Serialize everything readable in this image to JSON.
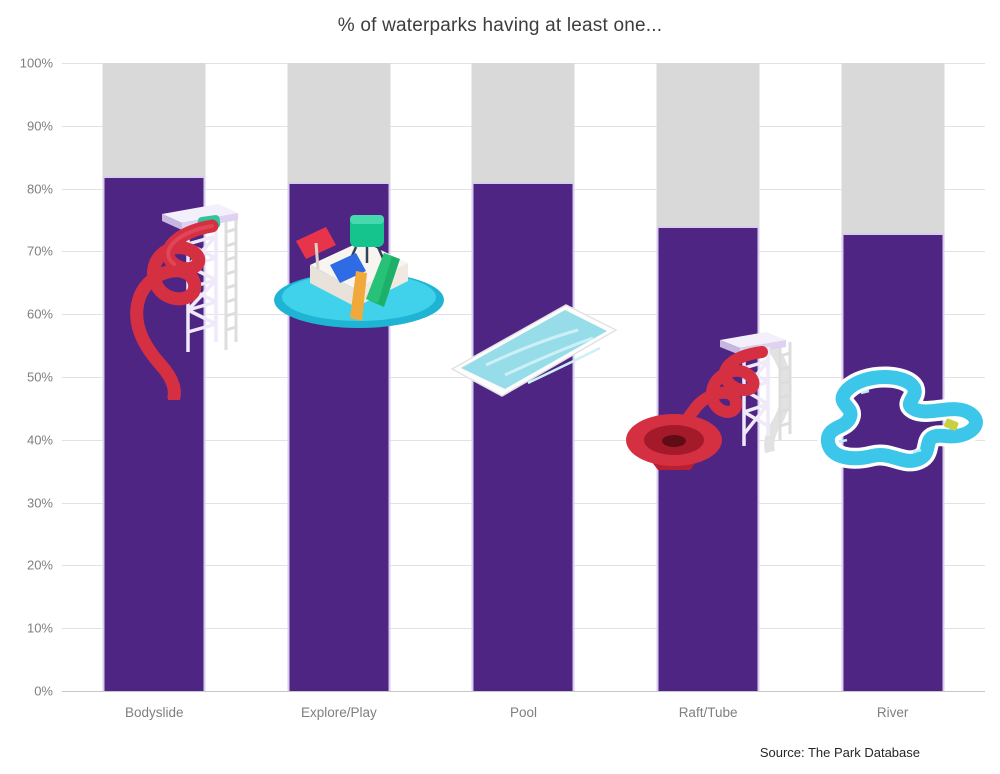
{
  "header": {
    "title": "% of waterparks having at least one..."
  },
  "footer": {
    "source": "Source: The Park Database"
  },
  "chart_data": {
    "type": "bar",
    "title": "% of waterparks having at least one...",
    "categories": [
      "Bodyslide",
      "Explore/Play",
      "Pool",
      "Raft/Tube",
      "River"
    ],
    "values": [
      82,
      81,
      81,
      74,
      73
    ],
    "value_unit": "%",
    "ylim": [
      0,
      100
    ],
    "yticks": [
      "0%",
      "10%",
      "20%",
      "30%",
      "40%",
      "50%",
      "60%",
      "70%",
      "80%",
      "90%",
      "100%"
    ],
    "grid": true,
    "legend": "none",
    "remainder_shown": "gray segment fills each column up to 100%",
    "icons": [
      "bodyslide-icon",
      "explore-play-icon",
      "pool-icon",
      "raft-tube-icon",
      "river-icon"
    ],
    "style": {
      "bar_color": "#4f2584",
      "remainder_color": "#d9d9d9",
      "bar_border_color": "#d9cdec",
      "gridline_color": "#e2e2e2",
      "axis_line_color": "#c6c6c6",
      "tick_text_color": "#7f7f7f",
      "title_color": "#3d3d3d",
      "source_color": "#262626"
    }
  }
}
